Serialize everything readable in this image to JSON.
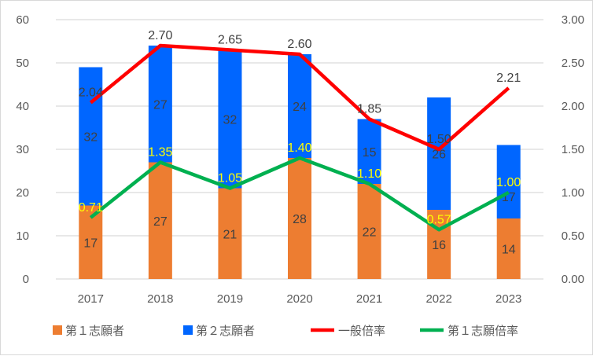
{
  "chart_data": {
    "type": "bar+line",
    "categories": [
      "2017",
      "2018",
      "2019",
      "2020",
      "2021",
      "2022",
      "2023"
    ],
    "left_axis": {
      "range": [
        0,
        60
      ],
      "ticks": [
        "0",
        "10",
        "20",
        "30",
        "40",
        "50",
        "60"
      ]
    },
    "right_axis": {
      "range": [
        0,
        3
      ],
      "ticks": [
        "0.00",
        "0.50",
        "1.00",
        "1.50",
        "2.00",
        "2.50",
        "3.00"
      ]
    },
    "grid": true,
    "legend_position": "bottom",
    "series": [
      {
        "name": "第１志願者",
        "kind": "stacked-bar",
        "axis": "left",
        "color": "#ED7D31",
        "label_color": "#404040",
        "values": [
          17,
          27,
          21,
          28,
          22,
          16,
          14
        ]
      },
      {
        "name": "第２志願者",
        "kind": "stacked-bar",
        "axis": "left",
        "color": "#0066FF",
        "label_color": "#404040",
        "values": [
          32,
          27,
          32,
          24,
          15,
          26,
          17
        ]
      },
      {
        "name": "一般倍率",
        "kind": "line",
        "axis": "right",
        "color": "#FF0000",
        "label_color": "#404040",
        "values": [
          2.04,
          2.7,
          2.65,
          2.6,
          1.85,
          1.5,
          2.21
        ]
      },
      {
        "name": "第１志願倍率",
        "kind": "line",
        "axis": "right",
        "color": "#00B050",
        "label_color": "#FFFF00",
        "values": [
          0.71,
          1.35,
          1.05,
          1.4,
          1.1,
          0.57,
          1.0
        ]
      }
    ]
  }
}
